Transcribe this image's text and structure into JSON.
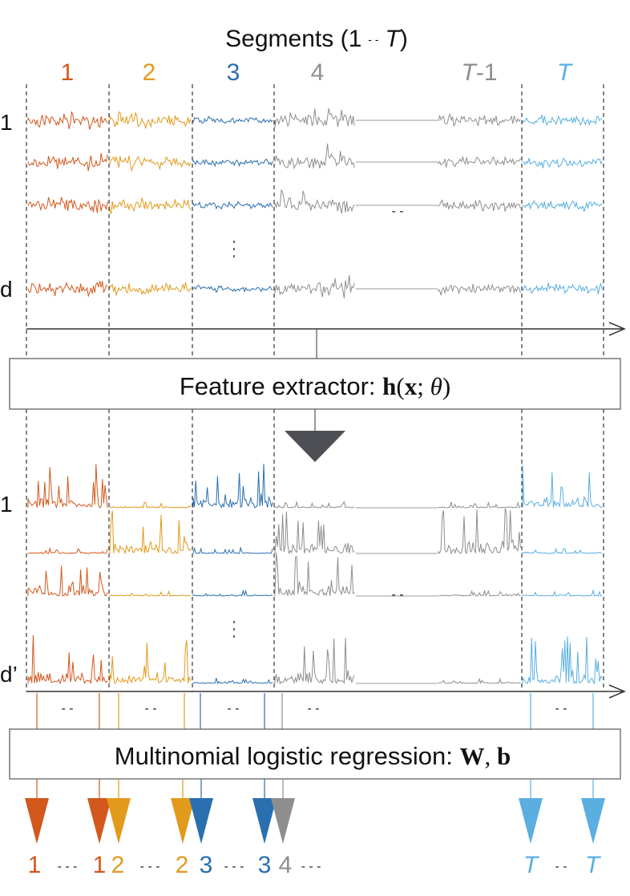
{
  "title": {
    "prefix": "Segments (1",
    "dots": "- -",
    "last": "T",
    "suffix": ")"
  },
  "segments": [
    {
      "id": "seg-1",
      "label": "1",
      "italic": false,
      "color": "#d2581d"
    },
    {
      "id": "seg-2",
      "label": "2",
      "italic": false,
      "color": "#e29a1c"
    },
    {
      "id": "seg-3",
      "label": "3",
      "italic": false,
      "color": "#2a6fb0"
    },
    {
      "id": "seg-4",
      "label": "4",
      "italic": false,
      "color": "#8e8e8e"
    },
    {
      "id": "seg-T-1",
      "label_prefix": "T",
      "label_suffix": "-1",
      "color": "#8e8e8e"
    },
    {
      "id": "seg-T",
      "label": "T",
      "italic": true,
      "color": "#5aaee0"
    }
  ],
  "input_channels": {
    "first_label": "1",
    "last_label": "d",
    "gap_dots": "- -"
  },
  "output_channels": {
    "first_label": "1",
    "last_label": "d’",
    "gap_dots": "- -"
  },
  "feature_extractor": {
    "text": "Feature extractor: ",
    "math_bold": "h",
    "math_rest_open": "(",
    "math_x": "x",
    "math_sep": "; ",
    "math_theta": "θ",
    "math_close": ")"
  },
  "regression": {
    "text": "Multinomial logistic regression: ",
    "math_W": "W",
    "math_sep": ", ",
    "math_b": "b"
  },
  "between_dots": "- -",
  "outputs": [
    {
      "label": "1",
      "italic": false,
      "color": "#d2581d"
    },
    {
      "label": "1",
      "italic": false,
      "color": "#d2581d"
    },
    {
      "label": "2",
      "italic": false,
      "color": "#e29a1c"
    },
    {
      "label": "2",
      "italic": false,
      "color": "#e29a1c"
    },
    {
      "label": "3",
      "italic": false,
      "color": "#2a6fb0"
    },
    {
      "label": "3",
      "italic": false,
      "color": "#2a6fb0"
    },
    {
      "label": "4",
      "italic": false,
      "color": "#8e8e8e"
    },
    {
      "label": "T",
      "italic": true,
      "color": "#5aaee0"
    },
    {
      "label": "T",
      "italic": true,
      "color": "#5aaee0"
    }
  ],
  "output_dots": "- - -",
  "colors": {
    "axis": "#333333",
    "box_border": "#555555",
    "down_arrow": "#4d4f55",
    "dashed": "#222222",
    "flat_line": "#999999"
  }
}
